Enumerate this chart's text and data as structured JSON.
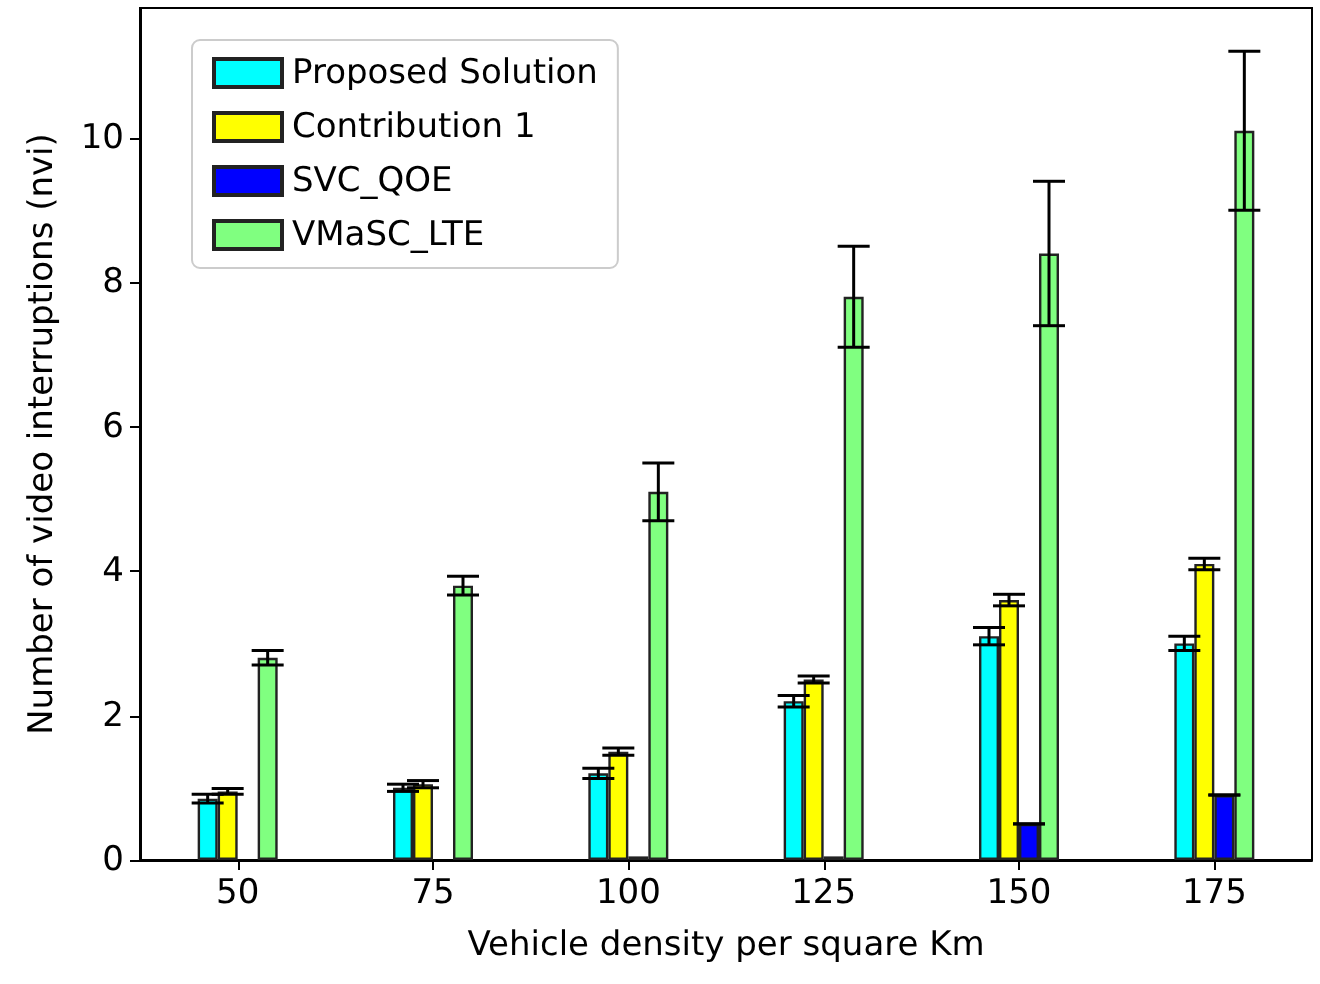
{
  "chart_data": {
    "type": "bar",
    "xlabel": "Vehicle density per square Km",
    "ylabel": "Number of video interruptions (nvi)",
    "categories": [
      "50",
      "75",
      "100",
      "125",
      "150",
      "175"
    ],
    "series": [
      {
        "name": "Proposed Solution",
        "color": "#00ffff",
        "values": [
          0.85,
          1.0,
          1.2,
          2.2,
          3.1,
          3.0
        ],
        "errors": [
          0.06,
          0.05,
          0.07,
          0.08,
          0.12,
          0.1
        ]
      },
      {
        "name": "Contribution 1",
        "color": "#ffff00",
        "values": [
          0.95,
          1.05,
          1.5,
          2.5,
          3.6,
          4.1
        ],
        "errors": [
          0.04,
          0.05,
          0.05,
          0.05,
          0.08,
          0.08
        ]
      },
      {
        "name": "SVC_QOE",
        "color": "#0000ff",
        "values": [
          0,
          0,
          0.05,
          0.05,
          0.5,
          0.9
        ],
        "errors": [
          null,
          null,
          null,
          null,
          0,
          0
        ]
      },
      {
        "name": "VMaSC_LTE",
        "color": "#80ff80",
        "values": [
          2.8,
          3.8,
          5.1,
          7.8,
          8.4,
          10.1
        ],
        "errors": [
          0.1,
          0.13,
          0.4,
          0.7,
          1.0,
          1.1
        ]
      }
    ],
    "ylim": [
      0,
      11.8
    ],
    "yticks": [
      0,
      2,
      4,
      6,
      8,
      10
    ],
    "grid": false,
    "legend": "top left"
  }
}
